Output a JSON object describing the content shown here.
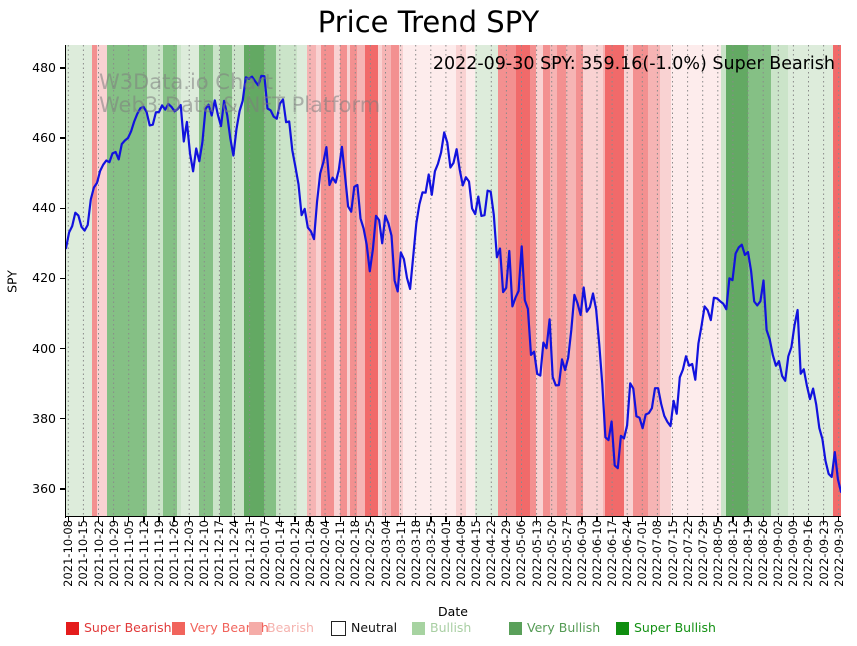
{
  "header": {
    "title": "Price Trend SPY"
  },
  "watermark": {
    "line1": "W3Data.io Chart",
    "line2": "Web3 Data & NFT Platform"
  },
  "annotation": {
    "text": "2022-09-30 SPY: 359.16(-1.0%) Super Bearish"
  },
  "axes": {
    "xlabel": "Date",
    "ylabel": "SPY"
  },
  "chart_data": {
    "type": "line",
    "title": "Price Trend SPY",
    "xlabel": "Date",
    "ylabel": "SPY",
    "ylim": [
      352,
      486.5
    ],
    "yticks": [
      360,
      380,
      400,
      420,
      440,
      460,
      480
    ],
    "grid": "vertical dotted weekly gridlines, no horizontal gridlines",
    "legend_position": "bottom",
    "xticks": [
      "2021-10-08",
      "2021-10-15",
      "2021-10-22",
      "2021-10-29",
      "2021-11-05",
      "2021-11-12",
      "2021-11-19",
      "2021-11-26",
      "2021-12-03",
      "2021-12-10",
      "2021-12-17",
      "2021-12-24",
      "2021-12-31",
      "2022-01-07",
      "2022-01-14",
      "2022-01-21",
      "2022-01-28",
      "2022-02-04",
      "2022-02-11",
      "2022-02-18",
      "2022-02-25",
      "2022-03-04",
      "2022-03-11",
      "2022-03-18",
      "2022-03-25",
      "2022-04-01",
      "2022-04-08",
      "2022-04-15",
      "2022-04-22",
      "2022-04-29",
      "2022-05-06",
      "2022-05-13",
      "2022-05-20",
      "2022-05-27",
      "2022-06-03",
      "2022-06-10",
      "2022-06-17",
      "2022-06-24",
      "2022-07-01",
      "2022-07-08",
      "2022-07-15",
      "2022-07-22",
      "2022-07-29",
      "2022-08-05",
      "2022-08-12",
      "2022-08-19",
      "2022-08-26",
      "2022-09-02",
      "2022-09-09",
      "2022-09-16",
      "2022-09-23",
      "2022-09-30"
    ],
    "last_point": {
      "date": "2022-09-30",
      "value": 359.16,
      "change_pct": -1.0,
      "sentiment": "Super Bearish"
    },
    "series": [
      {
        "name": "SPY",
        "color": "#1212de",
        "start_date": "2021-10-04",
        "end_date": "2022-09-30",
        "frequency": "daily (trading days)",
        "values": [
          428.6,
          433.1,
          434.9,
          438.7,
          437.9,
          434.7,
          433.6,
          435.2,
          442.5,
          445.9,
          447.2,
          450.6,
          452.4,
          453.6,
          453.1,
          455.6,
          456.0,
          453.9,
          458.3,
          459.3,
          460.0,
          461.9,
          464.7,
          466.9,
          468.5,
          468.9,
          467.4,
          463.6,
          463.8,
          467.3,
          467.4,
          469.3,
          468.1,
          469.7,
          468.9,
          467.6,
          468.2,
          469.4,
          459.0,
          464.6,
          455.6,
          450.5,
          457.0,
          453.4,
          458.8,
          468.3,
          469.5,
          466.4,
          470.7,
          466.6,
          463.4,
          470.6,
          466.5,
          459.9,
          455.0,
          462.6,
          467.7,
          470.6,
          477.3,
          476.9,
          477.5,
          476.2,
          475.0,
          477.7,
          477.6,
          468.4,
          467.9,
          466.1,
          465.5,
          469.8,
          471.0,
          464.5,
          464.7,
          456.5,
          451.8,
          446.8,
          438.0,
          439.8,
          434.5,
          433.4,
          431.2,
          442.0,
          449.9,
          453.0,
          457.4,
          446.6,
          448.7,
          447.3,
          450.9,
          457.5,
          449.3,
          440.5,
          439.0,
          446.1,
          446.6,
          437.1,
          434.2,
          429.6,
          422.0,
          428.3,
          437.8,
          436.6,
          430.0,
          437.9,
          435.7,
          432.2,
          419.4,
          416.3,
          427.4,
          425.5,
          420.1,
          417.0,
          426.2,
          435.6,
          441.1,
          444.5,
          444.4,
          449.6,
          443.8,
          450.5,
          452.7,
          455.9,
          461.6,
          458.7,
          451.6,
          452.9,
          456.8,
          451.0,
          446.5,
          448.8,
          447.6,
          439.9,
          438.3,
          443.3,
          437.8,
          438.0,
          445.0,
          444.7,
          438.1,
          426.0,
          428.5,
          416.1,
          417.3,
          427.8,
          412.0,
          414.5,
          416.4,
          429.1,
          413.8,
          411.3,
          398.2,
          399.1,
          392.8,
          392.3,
          401.7,
          400.1,
          408.3,
          391.9,
          389.5,
          389.6,
          396.9,
          393.9,
          397.4,
          405.3,
          415.3,
          412.9,
          409.6,
          417.4,
          410.5,
          411.8,
          415.7,
          411.2,
          401.4,
          389.8,
          374.7,
          373.9,
          379.2,
          366.7,
          365.9,
          375.1,
          374.4,
          378.1,
          390.1,
          388.6,
          380.7,
          380.3,
          377.3,
          381.2,
          381.6,
          383.0,
          388.7,
          388.7,
          384.2,
          380.8,
          379.1,
          377.9,
          385.1,
          381.4,
          391.8,
          394.0,
          397.8,
          395.1,
          395.6,
          391.1,
          401.4,
          406.4,
          412.0,
          410.9,
          408.1,
          414.5,
          414.3,
          413.5,
          412.8,
          411.2,
          420.0,
          419.5,
          427.1,
          428.8,
          429.6,
          426.7,
          427.5,
          422.1,
          413.4,
          412.3,
          413.5,
          419.4,
          405.3,
          402.6,
          398.2,
          395.1,
          396.4,
          392.2,
          390.8,
          397.8,
          400.4,
          406.6,
          411.0,
          392.8,
          394.1,
          389.4,
          385.6,
          388.6,
          384.1,
          377.4,
          374.2,
          368.0,
          364.3,
          363.4,
          370.5,
          362.8,
          359.16
        ]
      }
    ],
    "background_bands": {
      "description": "vertical daily sentiment bands behind the price line; positions are fractions of plot width",
      "palette": {
        "r1": "#f16a6a",
        "r2": "#f39090",
        "r3": "#f6b4b4",
        "r4": "#f9d2d2",
        "r5": "#fdecec",
        "g1": "#63a963",
        "g2": "#85c085",
        "g3": "#cbe4c9",
        "g4": "#ddecdb"
      },
      "segments": [
        [
          0.0,
          0.034,
          "g4"
        ],
        [
          0.034,
          0.04,
          "r2"
        ],
        [
          0.04,
          0.053,
          "r4"
        ],
        [
          0.053,
          0.105,
          "g2"
        ],
        [
          0.105,
          0.125,
          "g3"
        ],
        [
          0.125,
          0.143,
          "g2"
        ],
        [
          0.143,
          0.149,
          "g3"
        ],
        [
          0.149,
          0.172,
          "g4"
        ],
        [
          0.172,
          0.19,
          "g2"
        ],
        [
          0.19,
          0.199,
          "g3"
        ],
        [
          0.199,
          0.214,
          "g2"
        ],
        [
          0.214,
          0.23,
          "g3"
        ],
        [
          0.23,
          0.256,
          "g1"
        ],
        [
          0.256,
          0.271,
          "g2"
        ],
        [
          0.271,
          0.298,
          "g3"
        ],
        [
          0.298,
          0.311,
          "g4"
        ],
        [
          0.311,
          0.322,
          "r3"
        ],
        [
          0.322,
          0.329,
          "r4"
        ],
        [
          0.329,
          0.346,
          "r2"
        ],
        [
          0.346,
          0.354,
          "r4"
        ],
        [
          0.354,
          0.362,
          "r2"
        ],
        [
          0.362,
          0.366,
          "r4"
        ],
        [
          0.366,
          0.376,
          "r2"
        ],
        [
          0.376,
          0.386,
          "r3"
        ],
        [
          0.386,
          0.402,
          "r1"
        ],
        [
          0.402,
          0.408,
          "r4"
        ],
        [
          0.408,
          0.419,
          "r3"
        ],
        [
          0.419,
          0.43,
          "r2"
        ],
        [
          0.43,
          0.435,
          "r4"
        ],
        [
          0.435,
          0.503,
          "r5"
        ],
        [
          0.503,
          0.516,
          "r4"
        ],
        [
          0.516,
          0.528,
          "r5"
        ],
        [
          0.528,
          0.557,
          "g4"
        ],
        [
          0.557,
          0.58,
          "r2"
        ],
        [
          0.58,
          0.599,
          "r1"
        ],
        [
          0.599,
          0.606,
          "r2"
        ],
        [
          0.606,
          0.616,
          "r4"
        ],
        [
          0.616,
          0.625,
          "r2"
        ],
        [
          0.625,
          0.634,
          "r3"
        ],
        [
          0.634,
          0.645,
          "r2"
        ],
        [
          0.645,
          0.658,
          "r3"
        ],
        [
          0.658,
          0.667,
          "r2"
        ],
        [
          0.667,
          0.693,
          "r4"
        ],
        [
          0.693,
          0.696,
          "r3"
        ],
        [
          0.696,
          0.72,
          "r1"
        ],
        [
          0.72,
          0.731,
          "r4"
        ],
        [
          0.731,
          0.751,
          "r2"
        ],
        [
          0.751,
          0.767,
          "r3"
        ],
        [
          0.767,
          0.78,
          "r4"
        ],
        [
          0.78,
          0.845,
          "r5"
        ],
        [
          0.845,
          0.851,
          "g3"
        ],
        [
          0.851,
          0.88,
          "g1"
        ],
        [
          0.88,
          0.91,
          "g2"
        ],
        [
          0.91,
          0.932,
          "g3"
        ],
        [
          0.932,
          0.99,
          "g4"
        ],
        [
          0.99,
          1.0,
          "r1"
        ]
      ]
    },
    "legend": {
      "entries": [
        {
          "label": "Super Bearish",
          "swatch": "#e41c1c",
          "text_color": "#e13a3a"
        },
        {
          "label": "Very Bearish",
          "swatch": "#f1645c",
          "text_color": "#f1645c"
        },
        {
          "label": "Bearish",
          "swatch": "#f5aca8",
          "text_color": "#f5b3af"
        },
        {
          "label": "Neutral",
          "swatch": "#ffffff",
          "text_color": "#111111",
          "swatch_border": "#222222"
        },
        {
          "label": "Bullish",
          "swatch": "#a7d3a1",
          "text_color": "#a9cfa3"
        },
        {
          "label": "Very Bullish",
          "swatch": "#5aa05a",
          "text_color": "#559b55"
        },
        {
          "label": "Super Bullish",
          "swatch": "#108e10",
          "text_color": "#149114"
        }
      ]
    }
  }
}
